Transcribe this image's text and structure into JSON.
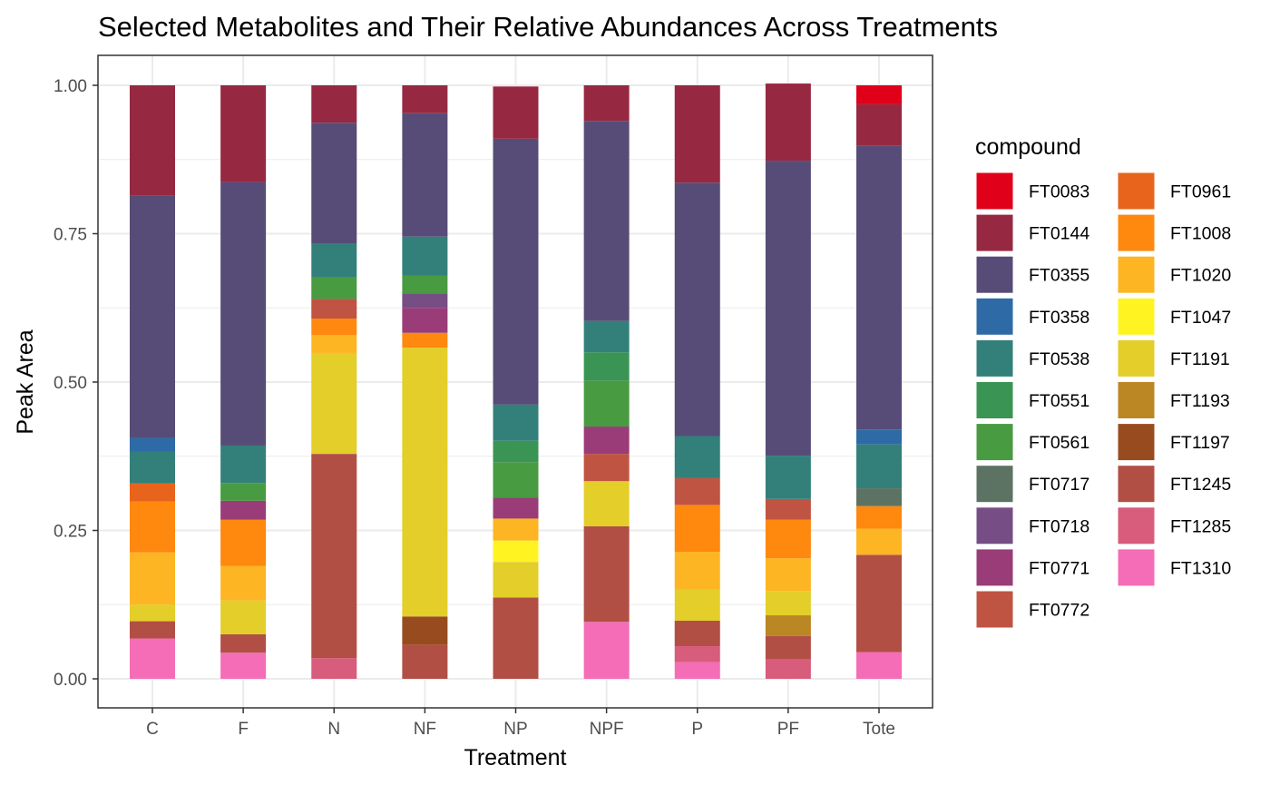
{
  "chart_data": {
    "type": "bar",
    "stacked": true,
    "title": "Selected Metabolites and Their Relative Abundances Across Treatments",
    "xlabel": "Treatment",
    "ylabel": "Peak Area",
    "ylim": [
      0,
      1
    ],
    "yticks": [
      "0.00",
      "0.25",
      "0.50",
      "0.75",
      "1.00"
    ],
    "grid": true,
    "legend_title": "compound",
    "legend_position": "right",
    "categories": [
      "C",
      "F",
      "N",
      "NF",
      "NP",
      "NPF",
      "P",
      "PF",
      "Tote"
    ],
    "compounds": [
      {
        "name": "FT0083",
        "color": "#E0001A"
      },
      {
        "name": "FT0144",
        "color": "#962941"
      },
      {
        "name": "FT0355",
        "color": "#574C77"
      },
      {
        "name": "FT0358",
        "color": "#2E6BA6"
      },
      {
        "name": "FT0538",
        "color": "#33807A"
      },
      {
        "name": "FT0551",
        "color": "#3A9555"
      },
      {
        "name": "FT0561",
        "color": "#489B40"
      },
      {
        "name": "FT0717",
        "color": "#5C7363"
      },
      {
        "name": "FT0718",
        "color": "#774D85"
      },
      {
        "name": "FT0771",
        "color": "#9A3C77"
      },
      {
        "name": "FT0772",
        "color": "#C05442"
      },
      {
        "name": "FT0961",
        "color": "#E8641C"
      },
      {
        "name": "FT1008",
        "color": "#FF880F"
      },
      {
        "name": "FT1020",
        "color": "#FDB523"
      },
      {
        "name": "FT1047",
        "color": "#FFF422"
      },
      {
        "name": "FT1191",
        "color": "#E3CE2A"
      },
      {
        "name": "FT1193",
        "color": "#BB8624"
      },
      {
        "name": "FT1197",
        "color": "#994B20"
      },
      {
        "name": "FT1245",
        "color": "#B14F45"
      },
      {
        "name": "FT1285",
        "color": "#D85C7C"
      },
      {
        "name": "FT1310",
        "color": "#F46DB6"
      }
    ],
    "series": [
      {
        "name": "FT0083",
        "values": [
          0,
          0,
          0,
          0,
          0,
          0,
          0,
          0,
          0.032
        ]
      },
      {
        "name": "FT0144",
        "values": [
          0.186,
          0.163,
          0.063,
          0.047,
          0.088,
          0.06,
          0.164,
          0.13,
          0.07
        ]
      },
      {
        "name": "FT0355",
        "values": [
          0.408,
          0.444,
          0.204,
          0.208,
          0.448,
          0.337,
          0.427,
          0.497,
          0.478
        ]
      },
      {
        "name": "FT0358",
        "values": [
          0.023,
          0,
          0,
          0,
          0,
          0,
          0,
          0,
          0.025
        ]
      },
      {
        "name": "FT0538",
        "values": [
          0.054,
          0.063,
          0.057,
          0.066,
          0.061,
          0.053,
          0.071,
          0.073,
          0.074
        ]
      },
      {
        "name": "FT0551",
        "values": [
          0,
          0,
          0,
          0,
          0.036,
          0.048,
          0,
          0,
          0
        ]
      },
      {
        "name": "FT0561",
        "values": [
          0,
          0.03,
          0.036,
          0.03,
          0.06,
          0.077,
          0,
          0,
          0
        ]
      },
      {
        "name": "FT0717",
        "values": [
          0,
          0,
          0,
          0,
          0,
          0,
          0,
          0,
          0.03
        ]
      },
      {
        "name": "FT0718",
        "values": [
          0,
          0,
          0,
          0.024,
          0,
          0,
          0,
          0,
          0
        ]
      },
      {
        "name": "FT0771",
        "values": [
          0,
          0.032,
          0,
          0.042,
          0.035,
          0.046,
          0,
          0,
          0
        ]
      },
      {
        "name": "FT0772",
        "values": [
          0,
          0,
          0.033,
          0,
          0,
          0.046,
          0.045,
          0.035,
          0
        ]
      },
      {
        "name": "FT0961",
        "values": [
          0.03,
          0,
          0,
          0,
          0,
          0,
          0,
          0,
          0
        ]
      },
      {
        "name": "FT1008",
        "values": [
          0.086,
          0.078,
          0.028,
          0.025,
          0,
          0,
          0.079,
          0.065,
          0.038
        ]
      },
      {
        "name": "FT1020",
        "values": [
          0.088,
          0.058,
          0.03,
          0,
          0.037,
          0,
          0.064,
          0.055,
          0.044
        ]
      },
      {
        "name": "FT1047",
        "values": [
          0,
          0,
          0,
          0,
          0.036,
          0,
          0,
          0,
          0
        ]
      },
      {
        "name": "FT1191",
        "values": [
          0.028,
          0.057,
          0.17,
          0.453,
          0.06,
          0.076,
          0.052,
          0.041,
          0
        ]
      },
      {
        "name": "FT1193",
        "values": [
          0,
          0,
          0,
          0,
          0,
          0,
          0,
          0.035,
          0
        ]
      },
      {
        "name": "FT1197",
        "values": [
          0,
          0,
          0,
          0.048,
          0,
          0,
          0,
          0,
          0
        ]
      },
      {
        "name": "FT1245",
        "values": [
          0.029,
          0.031,
          0.344,
          0.057,
          0.137,
          0.161,
          0.043,
          0.039,
          0.164
        ]
      },
      {
        "name": "FT1285",
        "values": [
          0,
          0,
          0.035,
          0,
          0,
          0,
          0.027,
          0.033,
          0
        ]
      },
      {
        "name": "FT1310",
        "values": [
          0.068,
          0.044,
          0,
          0,
          0,
          0.096,
          0.028,
          0,
          0.045
        ]
      }
    ]
  }
}
